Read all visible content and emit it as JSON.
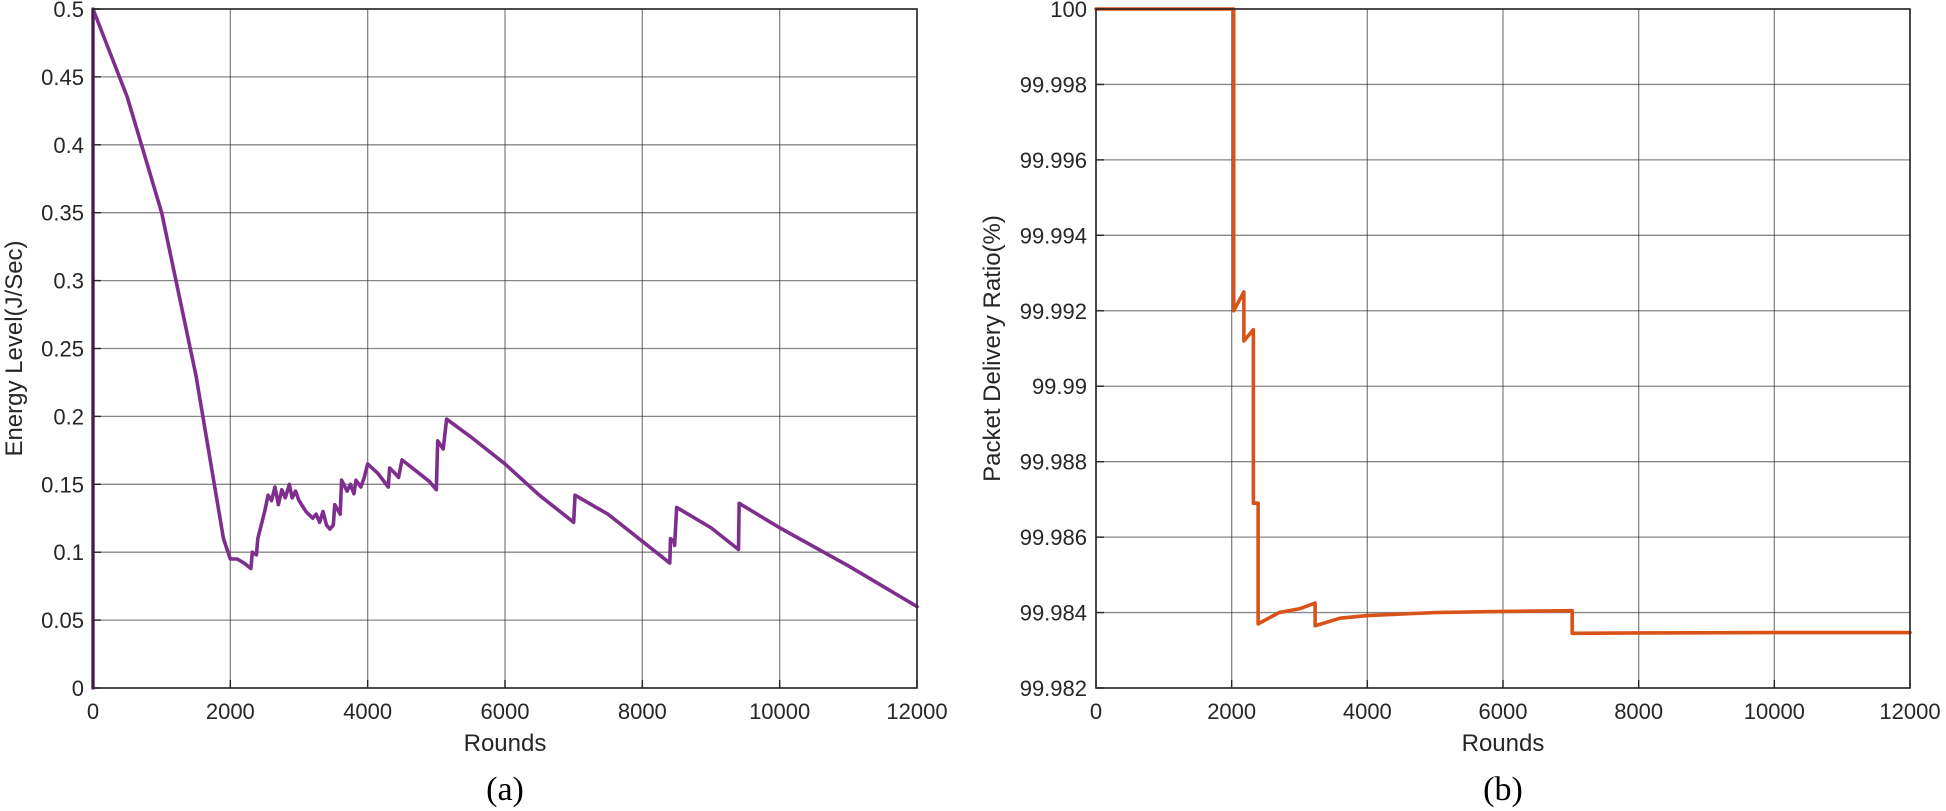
{
  "chart_data": [
    {
      "type": "line",
      "caption": "(a)",
      "xlabel": "Rounds",
      "ylabel": "Energy Level(J/Sec)",
      "xlim": [
        0,
        12000
      ],
      "ylim": [
        0,
        0.5
      ],
      "xticks": [
        0,
        2000,
        4000,
        6000,
        8000,
        10000,
        12000
      ],
      "yticks": [
        0,
        0.05,
        0.1,
        0.15,
        0.2,
        0.25,
        0.3,
        0.35,
        0.4,
        0.45,
        0.5
      ],
      "xtick_labels": [
        "0",
        "2000",
        "4000",
        "6000",
        "8000",
        "10000",
        "12000"
      ],
      "ytick_labels": [
        "0",
        "0.05",
        "0.1",
        "0.15",
        "0.2",
        "0.25",
        "0.3",
        "0.35",
        "0.4",
        "0.45",
        "0.5"
      ],
      "grid": true,
      "series": [
        {
          "color": "#7E2F8E",
          "points": [
            [
              0,
              0
            ],
            [
              0,
              0.5
            ],
            [
              500,
              0.435
            ],
            [
              1000,
              0.35
            ],
            [
              1500,
              0.23
            ],
            [
              1900,
              0.11
            ],
            [
              2000,
              0.095
            ],
            [
              2100,
              0.095
            ],
            [
              2200,
              0.092
            ],
            [
              2300,
              0.088
            ],
            [
              2320,
              0.1
            ],
            [
              2380,
              0.098
            ],
            [
              2400,
              0.11
            ],
            [
              2450,
              0.12
            ],
            [
              2500,
              0.13
            ],
            [
              2550,
              0.142
            ],
            [
              2600,
              0.138
            ],
            [
              2650,
              0.148
            ],
            [
              2700,
              0.135
            ],
            [
              2750,
              0.146
            ],
            [
              2800,
              0.14
            ],
            [
              2860,
              0.15
            ],
            [
              2900,
              0.14
            ],
            [
              2950,
              0.145
            ],
            [
              3000,
              0.138
            ],
            [
              3100,
              0.13
            ],
            [
              3200,
              0.125
            ],
            [
              3250,
              0.128
            ],
            [
              3300,
              0.122
            ],
            [
              3350,
              0.13
            ],
            [
              3400,
              0.12
            ],
            [
              3450,
              0.117
            ],
            [
              3500,
              0.12
            ],
            [
              3520,
              0.135
            ],
            [
              3600,
              0.128
            ],
            [
              3620,
              0.153
            ],
            [
              3700,
              0.145
            ],
            [
              3750,
              0.15
            ],
            [
              3800,
              0.143
            ],
            [
              3830,
              0.153
            ],
            [
              3900,
              0.148
            ],
            [
              3950,
              0.155
            ],
            [
              4000,
              0.165
            ],
            [
              4150,
              0.158
            ],
            [
              4300,
              0.148
            ],
            [
              4320,
              0.162
            ],
            [
              4400,
              0.158
            ],
            [
              4450,
              0.155
            ],
            [
              4500,
              0.168
            ],
            [
              4700,
              0.16
            ],
            [
              4900,
              0.152
            ],
            [
              5000,
              0.146
            ],
            [
              5020,
              0.182
            ],
            [
              5100,
              0.176
            ],
            [
              5150,
              0.198
            ],
            [
              5500,
              0.185
            ],
            [
              6000,
              0.165
            ],
            [
              6500,
              0.142
            ],
            [
              7000,
              0.122
            ],
            [
              7020,
              0.142
            ],
            [
              7500,
              0.128
            ],
            [
              8000,
              0.108
            ],
            [
              8400,
              0.092
            ],
            [
              8410,
              0.11
            ],
            [
              8460,
              0.108
            ],
            [
              8470,
              0.105
            ],
            [
              8500,
              0.133
            ],
            [
              9000,
              0.118
            ],
            [
              9400,
              0.102
            ],
            [
              9410,
              0.136
            ],
            [
              10000,
              0.118
            ],
            [
              11000,
              0.09
            ],
            [
              12000,
              0.06
            ]
          ]
        }
      ]
    },
    {
      "type": "line",
      "caption": "(b)",
      "xlabel": "Rounds",
      "ylabel": "Packet Delivery Ratio(%)",
      "xlim": [
        0,
        12000
      ],
      "ylim": [
        99.982,
        100
      ],
      "xticks": [
        0,
        2000,
        4000,
        6000,
        8000,
        10000,
        12000
      ],
      "yticks": [
        99.982,
        99.984,
        99.986,
        99.988,
        99.99,
        99.992,
        99.994,
        99.996,
        99.998,
        100
      ],
      "xtick_labels": [
        "0",
        "2000",
        "4000",
        "6000",
        "8000",
        "10000",
        "12000"
      ],
      "ytick_labels": [
        "99.982",
        "99.984",
        "99.986",
        "99.988",
        "99.99",
        "99.992",
        "99.994",
        "99.996",
        "99.998",
        "100"
      ],
      "grid": true,
      "series": [
        {
          "color": "#D95319",
          "points": [
            [
              0,
              100
            ],
            [
              2030,
              100
            ],
            [
              2030,
              99.992
            ],
            [
              2180,
              99.9925
            ],
            [
              2180,
              99.9912
            ],
            [
              2320,
              99.9915
            ],
            [
              2320,
              99.9869
            ],
            [
              2390,
              99.9869
            ],
            [
              2390,
              99.9837
            ],
            [
              2700,
              99.984
            ],
            [
              3000,
              99.9841
            ],
            [
              3230,
              99.98425
            ],
            [
              3230,
              99.98365
            ],
            [
              3600,
              99.98385
            ],
            [
              4000,
              99.98392
            ],
            [
              5000,
              99.984
            ],
            [
              6000,
              99.98403
            ],
            [
              7000,
              99.98405
            ],
            [
              7020,
              99.98405
            ],
            [
              7020,
              99.98345
            ],
            [
              8000,
              99.98346
            ],
            [
              10000,
              99.98347
            ],
            [
              12000,
              99.98347
            ]
          ]
        }
      ]
    }
  ]
}
